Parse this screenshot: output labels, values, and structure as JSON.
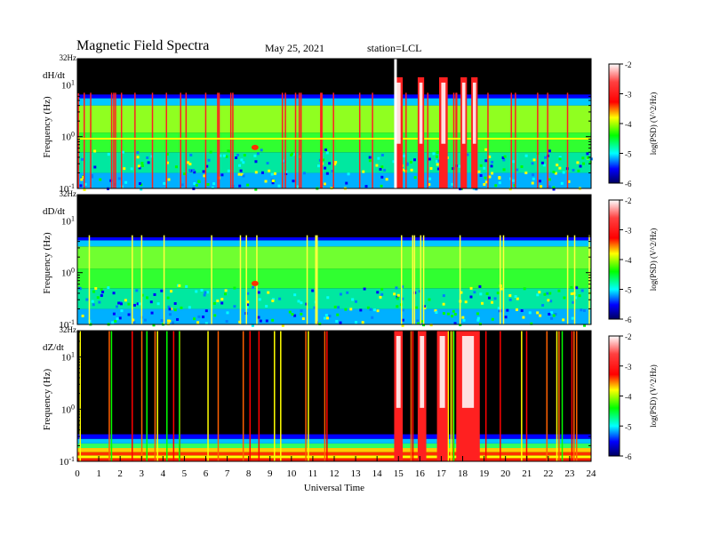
{
  "header": {
    "title": "Magnetic Field Spectra",
    "date": "May 25, 2021",
    "station": "station=LCL"
  },
  "colors": {
    "background": "#000000",
    "colormap": [
      "#ffffff",
      "#ff0000",
      "#ffff00",
      "#00ff00",
      "#00ffff",
      "#0000ff",
      "#000080"
    ]
  },
  "chart_data": [
    {
      "type": "heatmap",
      "panel_label": "dH/dt",
      "top_freq_label": "32Hz",
      "ylabel": "Frequency (Hz)",
      "yticks": [
        "10^1",
        "10^0",
        "10^-1"
      ],
      "y_scale": "log",
      "ylim_hz": [
        0.1,
        32
      ],
      "xlim_ut": [
        0,
        24
      ],
      "colorbar": {
        "label": "log(PSD) (V^2/Hz)",
        "ticks": [
          "-2",
          "-3",
          "-4",
          "-5",
          "-6"
        ],
        "range": [
          -6,
          -2
        ]
      },
      "event_bursts_ut": [
        [
          14.8,
          15.2
        ],
        [
          15.9,
          16.2
        ],
        [
          16.9,
          17.3
        ],
        [
          17.9,
          18.2
        ],
        [
          18.4,
          18.7
        ]
      ]
    },
    {
      "type": "heatmap",
      "panel_label": "dD/dt",
      "top_freq_label": "32Hz",
      "ylabel": "Frequency (Hz)",
      "yticks": [
        "10^1",
        "10^0",
        "10^-1"
      ],
      "y_scale": "log",
      "ylim_hz": [
        0.1,
        32
      ],
      "xlim_ut": [
        0,
        24
      ],
      "colorbar": {
        "label": "log(PSD) (V^2/Hz)",
        "ticks": [
          "-2",
          "-3",
          "-4",
          "-5",
          "-6"
        ],
        "range": [
          -6,
          -2
        ]
      }
    },
    {
      "type": "heatmap",
      "panel_label": "dZ/dt",
      "top_freq_label": "32Hz",
      "ylabel": "Frequency (Hz)",
      "yticks": [
        "10^1",
        "10^0",
        "10^-1"
      ],
      "y_scale": "log",
      "ylim_hz": [
        0.1,
        32
      ],
      "xlim_ut": [
        0,
        24
      ],
      "colorbar": {
        "label": "log(PSD) (V^2/Hz)",
        "ticks": [
          "-2",
          "-3",
          "-4",
          "-5",
          "-6"
        ],
        "range": [
          -6,
          -2
        ]
      },
      "event_bursts_ut": [
        [
          14.8,
          15.2
        ],
        [
          15.9,
          16.3
        ],
        [
          16.8,
          17.3
        ],
        [
          17.7,
          18.8
        ]
      ]
    }
  ],
  "xaxis": {
    "label": "Universal Time",
    "ticks": [
      "0",
      "1",
      "2",
      "3",
      "4",
      "5",
      "6",
      "7",
      "8",
      "9",
      "10",
      "11",
      "12",
      "13",
      "14",
      "15",
      "16",
      "17",
      "18",
      "19",
      "20",
      "21",
      "22",
      "23",
      "24"
    ]
  }
}
